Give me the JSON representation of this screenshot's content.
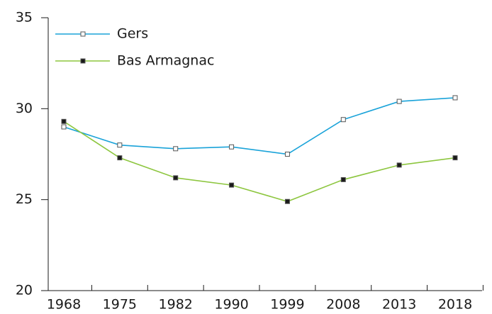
{
  "chart_data": {
    "type": "line",
    "categories": [
      "1968",
      "1975",
      "1982",
      "1990",
      "1999",
      "2008",
      "2013",
      "2018"
    ],
    "series": [
      {
        "name": "Gers",
        "color": "#1aa3d9",
        "marker_fill": "#ffffff",
        "values": [
          29.0,
          28.0,
          27.8,
          27.9,
          27.5,
          29.4,
          30.4,
          30.6
        ]
      },
      {
        "name": "Bas Armagnac",
        "color": "#8dc63f",
        "marker_fill": "#1a1a1a",
        "values": [
          29.3,
          27.3,
          26.2,
          25.8,
          24.9,
          26.1,
          26.9,
          27.3
        ]
      }
    ],
    "ylim": [
      20,
      35
    ],
    "yticks": [
      20,
      25,
      30,
      35
    ],
    "legend": "upper left"
  }
}
